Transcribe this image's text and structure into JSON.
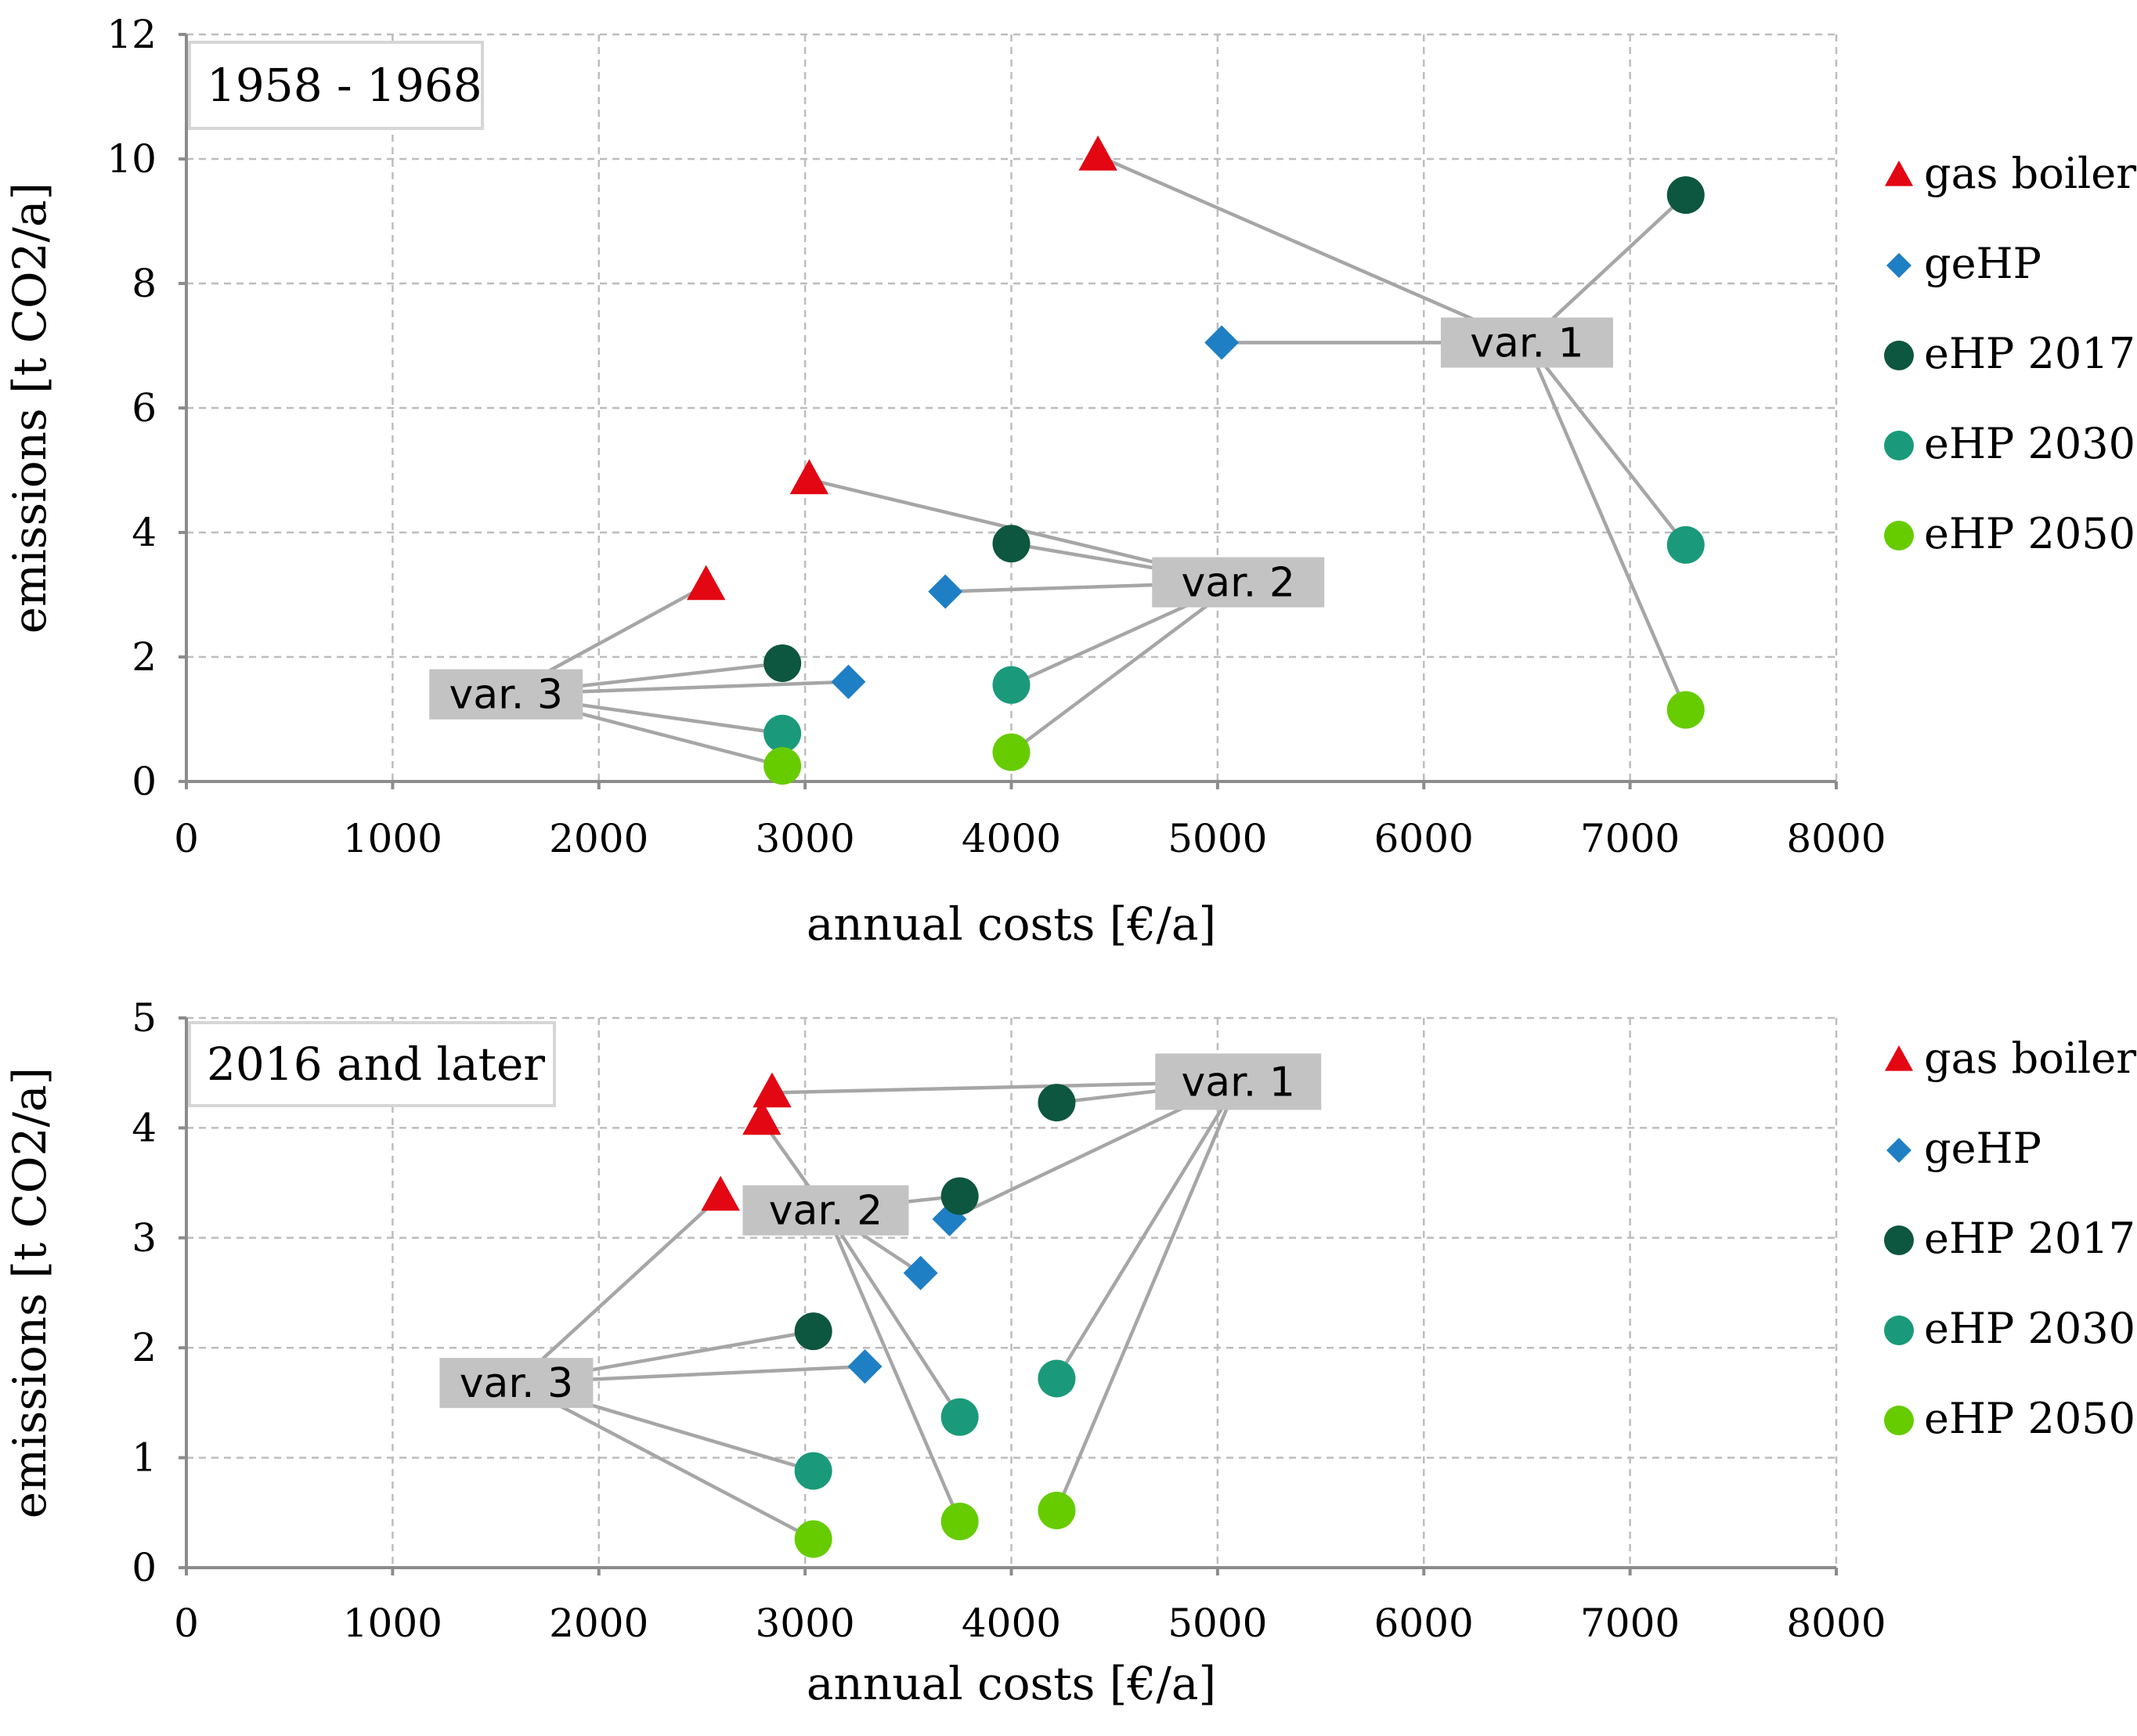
{
  "chart_data": [
    {
      "type": "scatter",
      "period_label": "1958 - 1968",
      "xlabel": "annual costs [€/a]",
      "ylabel": "emissions [t CO2/a]",
      "xlim": [
        0,
        8000
      ],
      "ylim": [
        0,
        12
      ],
      "xticks": [
        0,
        1000,
        2000,
        3000,
        4000,
        5000,
        6000,
        7000,
        8000
      ],
      "yticks": [
        0,
        2,
        4,
        6,
        8,
        10,
        12
      ],
      "grid": true,
      "legend_position": "right",
      "series": [
        {
          "name": "gas boiler",
          "marker": "triangle",
          "color": "#e30613",
          "points": [
            {
              "variant": "var. 1",
              "x": 4420,
              "y": 10.05
            },
            {
              "variant": "var. 2",
              "x": 3020,
              "y": 4.85
            },
            {
              "variant": "var. 3",
              "x": 2520,
              "y": 3.15
            }
          ]
        },
        {
          "name": "geHP",
          "marker": "diamond",
          "color": "#1f7fc4",
          "points": [
            {
              "variant": "var. 1",
              "x": 5020,
              "y": 7.05
            },
            {
              "variant": "var. 2",
              "x": 3680,
              "y": 3.05
            },
            {
              "variant": "var. 3",
              "x": 3210,
              "y": 1.6
            }
          ]
        },
        {
          "name": "eHP 2017",
          "marker": "circle",
          "color": "#0d5640",
          "points": [
            {
              "variant": "var. 1",
              "x": 7270,
              "y": 9.42
            },
            {
              "variant": "var. 2",
              "x": 4000,
              "y": 3.82
            },
            {
              "variant": "var. 3",
              "x": 2890,
              "y": 1.9
            }
          ]
        },
        {
          "name": "eHP 2030",
          "marker": "circle",
          "color": "#1a9a7a",
          "points": [
            {
              "variant": "var. 1",
              "x": 7270,
              "y": 3.8
            },
            {
              "variant": "var. 2",
              "x": 4000,
              "y": 1.55
            },
            {
              "variant": "var. 3",
              "x": 2890,
              "y": 0.77
            }
          ]
        },
        {
          "name": "eHP 2050",
          "marker": "circle",
          "color": "#66cc00",
          "points": [
            {
              "variant": "var. 1",
              "x": 7270,
              "y": 1.15
            },
            {
              "variant": "var. 2",
              "x": 4000,
              "y": 0.47
            },
            {
              "variant": "var. 3",
              "x": 2890,
              "y": 0.25
            }
          ]
        }
      ],
      "annotations": [
        {
          "text": "var. 1",
          "x": 6500,
          "y": 7.05
        },
        {
          "text": "var. 2",
          "x": 5100,
          "y": 3.2
        },
        {
          "text": "var. 3",
          "x": 1550,
          "y": 1.4
        }
      ]
    },
    {
      "type": "scatter",
      "period_label": "2016 and later",
      "xlabel": "annual costs [€/a]",
      "ylabel": "emissions [t CO2/a]",
      "xlim": [
        0,
        8000
      ],
      "ylim": [
        0,
        5
      ],
      "xticks": [
        0,
        1000,
        2000,
        3000,
        4000,
        5000,
        6000,
        7000,
        8000
      ],
      "yticks": [
        0,
        1,
        2,
        3,
        4,
        5
      ],
      "grid": true,
      "legend_position": "right",
      "series": [
        {
          "name": "gas boiler",
          "marker": "triangle",
          "color": "#e30613",
          "points": [
            {
              "variant": "var. 1",
              "x": 2840,
              "y": 4.32
            },
            {
              "variant": "var. 2",
              "x": 2790,
              "y": 4.07
            },
            {
              "variant": "var. 3",
              "x": 2590,
              "y": 3.38
            }
          ]
        },
        {
          "name": "geHP",
          "marker": "diamond",
          "color": "#1f7fc4",
          "points": [
            {
              "variant": "var. 1",
              "x": 3700,
              "y": 3.17
            },
            {
              "variant": "var. 2",
              "x": 3560,
              "y": 2.68
            },
            {
              "variant": "var. 3",
              "x": 3290,
              "y": 1.83
            }
          ]
        },
        {
          "name": "eHP 2017",
          "marker": "circle",
          "color": "#0d5640",
          "points": [
            {
              "variant": "var. 1",
              "x": 4220,
              "y": 4.23
            },
            {
              "variant": "var. 2",
              "x": 3750,
              "y": 3.38
            },
            {
              "variant": "var. 3",
              "x": 3040,
              "y": 2.15
            }
          ]
        },
        {
          "name": "eHP 2030",
          "marker": "circle",
          "color": "#1a9a7a",
          "points": [
            {
              "variant": "var. 1",
              "x": 4220,
              "y": 1.72
            },
            {
              "variant": "var. 2",
              "x": 3750,
              "y": 1.37
            },
            {
              "variant": "var. 3",
              "x": 3040,
              "y": 0.88
            }
          ]
        },
        {
          "name": "eHP 2050",
          "marker": "circle",
          "color": "#66cc00",
          "points": [
            {
              "variant": "var. 1",
              "x": 4220,
              "y": 0.52
            },
            {
              "variant": "var. 2",
              "x": 3750,
              "y": 0.42
            },
            {
              "variant": "var. 3",
              "x": 3040,
              "y": 0.26
            }
          ]
        }
      ],
      "annotations": [
        {
          "text": "var. 1",
          "x": 5100,
          "y": 4.42
        },
        {
          "text": "var. 2",
          "x": 3100,
          "y": 3.25
        },
        {
          "text": "var. 3",
          "x": 1600,
          "y": 1.68
        }
      ]
    }
  ]
}
